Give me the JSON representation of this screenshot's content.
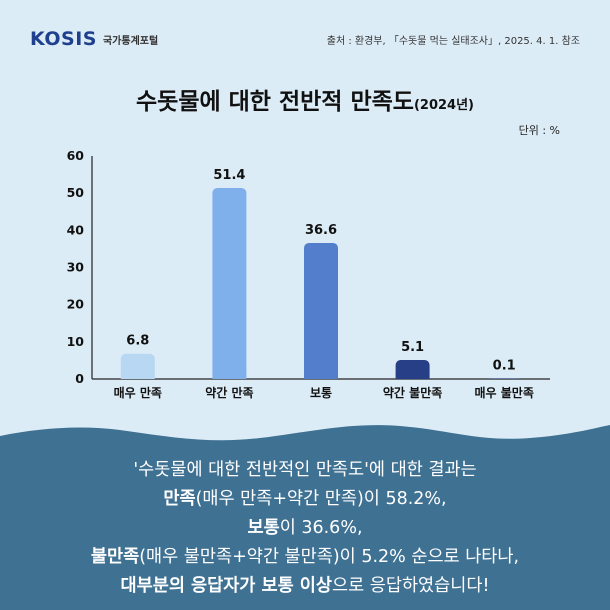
{
  "header": {
    "logo_text": "KOSIS",
    "logo_sub": "국가통계포털",
    "source": "출처 : 환경부, 「수돗물 먹는 실태조사」, 2025. 4. 1. 참조"
  },
  "title_main": "수돗물에 대한 전반적 만족도",
  "title_year": "(2024년)",
  "unit": "단위 : %",
  "chart_data": {
    "type": "bar",
    "categories": [
      "매우 만족",
      "약간 만족",
      "보통",
      "약간 불만족",
      "매우 불만족"
    ],
    "values": [
      6.8,
      51.4,
      36.6,
      5.1,
      0.1
    ],
    "value_labels": [
      "6.8",
      "51.4",
      "36.6",
      "5.1",
      "0.1"
    ],
    "colors": [
      "#b7d7f3",
      "#7fb0ec",
      "#527ecb",
      "#263f86",
      "#263f86"
    ],
    "yticks": [
      0,
      10,
      20,
      30,
      40,
      50,
      60
    ],
    "ylim": [
      0,
      60
    ],
    "title": "수돗물에 대한 전반적 만족도(2024년)",
    "xlabel": "",
    "ylabel": "",
    "grid": false
  },
  "caption": {
    "line1": "'수돗물에 대한 전반적인 만족도'에 대한 결과는",
    "line2_bold": "만족",
    "line2_rest": "(매우 만족+약간 만족)이 58.2%,",
    "line3_bold": "보통",
    "line3_rest": "이 36.6%,",
    "line4_bold": "불만족",
    "line4_rest": "(매우 불만족+약간 불만족)이 5.2% 순으로 나타나,",
    "line5_bold1": "대부분의 응답자가 보통 이상",
    "line5_rest": "으로 응답하였습니다!"
  },
  "colors": {
    "background": "#dcecf6",
    "wave": "#3f7193",
    "axis": "#222222"
  }
}
